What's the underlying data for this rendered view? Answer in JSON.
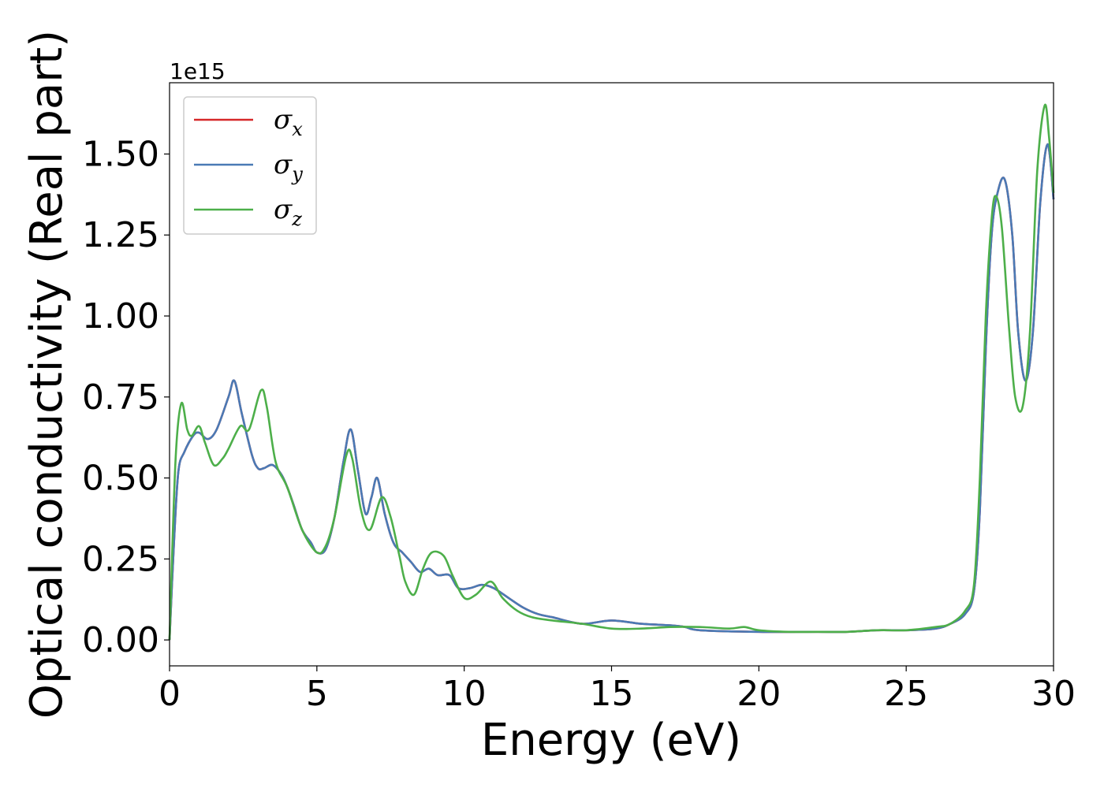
{
  "chart_data": {
    "type": "line",
    "xlabel": "Energy (eV)",
    "ylabel": "Optical conductivity (Real part)",
    "y_offset_label": "1e15",
    "xlim": [
      0,
      30
    ],
    "ylim": [
      -0.08,
      1.72
    ],
    "x_ticks": [
      0,
      5,
      10,
      15,
      20,
      25,
      30
    ],
    "x_tick_labels": [
      "0",
      "5",
      "10",
      "15",
      "20",
      "25",
      "30"
    ],
    "y_ticks": [
      0,
      0.25,
      0.5,
      0.75,
      1.0,
      1.25,
      1.5
    ],
    "y_tick_labels": [
      "0.00",
      "0.25",
      "0.50",
      "0.75",
      "1.00",
      "1.25",
      "1.50"
    ],
    "grid": false,
    "legend_position": "top-left",
    "series": [
      {
        "name": "σx",
        "symbol": "σ",
        "subscript": "x",
        "color": "#d62728",
        "x": [
          0,
          0.15,
          0.3,
          0.5,
          0.8,
          1.0,
          1.3,
          1.6,
          2.0,
          2.2,
          2.45,
          2.8,
          3.0,
          3.2,
          3.5,
          3.8,
          4.0,
          4.2,
          4.5,
          4.8,
          5.0,
          5.3,
          5.6,
          5.9,
          6.15,
          6.4,
          6.65,
          6.85,
          7.05,
          7.3,
          7.6,
          7.9,
          8.2,
          8.5,
          8.8,
          9.1,
          9.5,
          9.8,
          10.2,
          10.6,
          11.0,
          11.5,
          12.0,
          12.5,
          13.0,
          14.0,
          15.0,
          16.0,
          17.0,
          17.5,
          18.0,
          20.0,
          22.0,
          23.0,
          24.0,
          25.0,
          26.0,
          26.5,
          27.0,
          27.3,
          27.5,
          27.7,
          27.9,
          28.1,
          28.35,
          28.6,
          28.8,
          29.05,
          29.3,
          29.55,
          29.8,
          30.0
        ],
        "y": [
          0.0,
          0.3,
          0.52,
          0.58,
          0.63,
          0.64,
          0.62,
          0.65,
          0.75,
          0.8,
          0.7,
          0.57,
          0.53,
          0.53,
          0.54,
          0.51,
          0.47,
          0.42,
          0.34,
          0.3,
          0.27,
          0.28,
          0.38,
          0.55,
          0.65,
          0.52,
          0.39,
          0.44,
          0.5,
          0.39,
          0.3,
          0.27,
          0.24,
          0.21,
          0.22,
          0.2,
          0.2,
          0.16,
          0.16,
          0.17,
          0.16,
          0.13,
          0.1,
          0.08,
          0.07,
          0.05,
          0.06,
          0.05,
          0.045,
          0.04,
          0.03,
          0.025,
          0.025,
          0.025,
          0.03,
          0.03,
          0.035,
          0.05,
          0.08,
          0.15,
          0.4,
          0.9,
          1.25,
          1.38,
          1.42,
          1.25,
          0.95,
          0.8,
          0.95,
          1.35,
          1.53,
          1.36
        ]
      },
      {
        "name": "σy",
        "symbol": "σ",
        "subscript": "y",
        "color": "#4a7ab5",
        "x": [
          0,
          0.15,
          0.3,
          0.5,
          0.8,
          1.0,
          1.3,
          1.6,
          2.0,
          2.2,
          2.45,
          2.8,
          3.0,
          3.2,
          3.5,
          3.8,
          4.0,
          4.2,
          4.5,
          4.8,
          5.0,
          5.3,
          5.6,
          5.9,
          6.15,
          6.4,
          6.65,
          6.85,
          7.05,
          7.3,
          7.6,
          7.9,
          8.2,
          8.5,
          8.8,
          9.1,
          9.5,
          9.8,
          10.2,
          10.6,
          11.0,
          11.5,
          12.0,
          12.5,
          13.0,
          14.0,
          15.0,
          16.0,
          17.0,
          17.5,
          18.0,
          20.0,
          22.0,
          23.0,
          24.0,
          25.0,
          26.0,
          26.5,
          27.0,
          27.3,
          27.5,
          27.7,
          27.9,
          28.1,
          28.35,
          28.6,
          28.8,
          29.05,
          29.3,
          29.55,
          29.8,
          30.0
        ],
        "y": [
          0.0,
          0.3,
          0.52,
          0.58,
          0.63,
          0.64,
          0.62,
          0.65,
          0.75,
          0.8,
          0.7,
          0.57,
          0.53,
          0.53,
          0.54,
          0.51,
          0.47,
          0.42,
          0.34,
          0.3,
          0.27,
          0.28,
          0.38,
          0.55,
          0.65,
          0.52,
          0.39,
          0.44,
          0.5,
          0.39,
          0.3,
          0.27,
          0.24,
          0.21,
          0.22,
          0.2,
          0.2,
          0.16,
          0.16,
          0.17,
          0.16,
          0.13,
          0.1,
          0.08,
          0.07,
          0.05,
          0.06,
          0.05,
          0.045,
          0.04,
          0.03,
          0.025,
          0.025,
          0.025,
          0.03,
          0.03,
          0.035,
          0.05,
          0.08,
          0.15,
          0.4,
          0.9,
          1.25,
          1.38,
          1.42,
          1.25,
          0.95,
          0.8,
          0.95,
          1.35,
          1.53,
          1.36
        ]
      },
      {
        "name": "σz",
        "symbol": "σ",
        "subscript": "z",
        "color": "#4daf4a",
        "x": [
          0,
          0.2,
          0.4,
          0.6,
          0.75,
          1.0,
          1.2,
          1.5,
          1.8,
          2.0,
          2.4,
          2.7,
          3.1,
          3.3,
          3.6,
          4.0,
          4.5,
          5.0,
          5.3,
          5.6,
          6.0,
          6.2,
          6.5,
          6.8,
          7.2,
          7.5,
          7.8,
          8.0,
          8.3,
          8.6,
          8.9,
          9.3,
          9.6,
          10.0,
          10.4,
          10.9,
          11.3,
          11.8,
          12.3,
          13.0,
          14.0,
          15.0,
          16.0,
          17.0,
          18.0,
          19.0,
          19.5,
          20.0,
          21.0,
          22.0,
          23.0,
          24.0,
          25.0,
          26.0,
          26.5,
          27.0,
          27.3,
          27.5,
          27.7,
          27.9,
          28.05,
          28.25,
          28.5,
          28.7,
          28.95,
          29.2,
          29.45,
          29.7,
          29.85,
          30.0
        ],
        "y": [
          0.0,
          0.55,
          0.73,
          0.65,
          0.63,
          0.66,
          0.61,
          0.54,
          0.56,
          0.59,
          0.66,
          0.65,
          0.77,
          0.72,
          0.55,
          0.47,
          0.34,
          0.27,
          0.29,
          0.38,
          0.57,
          0.56,
          0.4,
          0.34,
          0.44,
          0.38,
          0.26,
          0.18,
          0.14,
          0.22,
          0.27,
          0.26,
          0.2,
          0.13,
          0.14,
          0.18,
          0.13,
          0.09,
          0.07,
          0.06,
          0.05,
          0.035,
          0.035,
          0.04,
          0.04,
          0.035,
          0.04,
          0.03,
          0.025,
          0.025,
          0.025,
          0.03,
          0.03,
          0.04,
          0.05,
          0.09,
          0.17,
          0.5,
          1.0,
          1.3,
          1.37,
          1.27,
          0.95,
          0.75,
          0.72,
          0.95,
          1.45,
          1.65,
          1.55,
          1.38
        ]
      }
    ]
  }
}
